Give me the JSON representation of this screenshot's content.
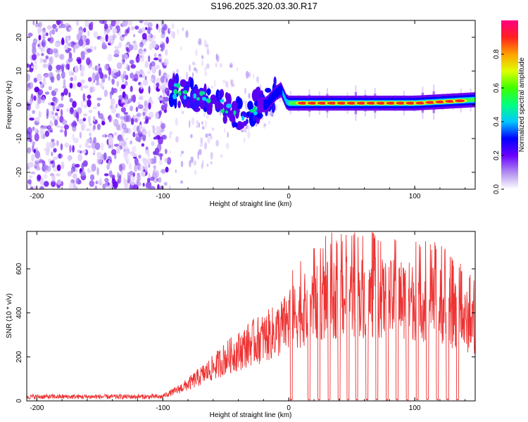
{
  "title": "S196.2025.320.03.30.R17",
  "chart_data": [
    {
      "type": "heatmap",
      "name": "spectrogram",
      "xlabel": "Height of straight line (km)",
      "ylabel": "Frequency (Hz)",
      "xlim": [
        -208,
        148
      ],
      "ylim": [
        -25,
        25
      ],
      "xticks": [
        -200,
        -100,
        0,
        100
      ],
      "yticks": [
        -20,
        -10,
        0,
        10,
        20
      ],
      "colorbar": {
        "label": "Normalized spectral amplitude",
        "range": [
          0,
          1
        ],
        "ticks": [
          0.0,
          0.2,
          0.4,
          0.6,
          0.8
        ],
        "tick_labels": [
          "0.0",
          "0.2",
          "0.4",
          "0.6",
          "0.8"
        ],
        "colors": [
          "#ffffff",
          "#b08cf0",
          "#6a00ff",
          "#0000ff",
          "#00c8ff",
          "#00ff80",
          "#40ff00",
          "#e0ff00",
          "#ffa000",
          "#ff2020",
          "#ff0080"
        ]
      },
      "carrier_track_km_hz": [
        [
          -95,
          4.5
        ],
        [
          -85,
          3.5
        ],
        [
          -75,
          2.5
        ],
        [
          -65,
          1.5
        ],
        [
          -55,
          0.5
        ],
        [
          -45,
          -1.5
        ],
        [
          -38,
          -3.5
        ],
        [
          -30,
          -1
        ],
        [
          -22,
          0
        ],
        [
          -18,
          0
        ],
        [
          -10,
          3.5
        ],
        [
          -6,
          4.5
        ],
        [
          -2,
          1
        ],
        [
          0,
          0.5
        ],
        [
          50,
          0.5
        ],
        [
          100,
          0.5
        ],
        [
          148,
          1.5
        ]
      ]
    },
    {
      "type": "line",
      "name": "snr",
      "xlabel": "Height of straight line (km)",
      "ylabel": "SNR (10 * v/v)",
      "xlim": [
        -208,
        148
      ],
      "ylim": [
        0,
        770
      ],
      "xticks": [
        -200,
        -100,
        0,
        100
      ],
      "yticks": [
        0,
        200,
        400,
        600
      ],
      "series": [
        {
          "name": "SNR",
          "color": "#ee3333",
          "envelope_km_snr": [
            [
              -208,
              20
            ],
            [
              -110,
              25
            ],
            [
              -100,
              30
            ],
            [
              -90,
              60
            ],
            [
              -80,
              100
            ],
            [
              -70,
              150
            ],
            [
              -60,
              200
            ],
            [
              -50,
              260
            ],
            [
              -40,
              300
            ],
            [
              -30,
              350
            ],
            [
              -20,
              380
            ],
            [
              -10,
              420
            ],
            [
              0,
              480
            ],
            [
              10,
              540
            ],
            [
              20,
              580
            ],
            [
              30,
              610
            ],
            [
              40,
              620
            ],
            [
              50,
              630
            ],
            [
              60,
              630
            ],
            [
              70,
              620
            ],
            [
              80,
              610
            ],
            [
              90,
              620
            ],
            [
              100,
              600
            ],
            [
              110,
              590
            ],
            [
              120,
              580
            ],
            [
              130,
              520
            ],
            [
              140,
              480
            ],
            [
              148,
              470
            ]
          ],
          "dropouts_km": [
            2,
            16,
            24,
            32,
            40,
            47,
            54,
            62,
            70,
            78,
            86,
            94,
            102,
            110,
            118,
            126,
            134
          ]
        }
      ]
    }
  ]
}
